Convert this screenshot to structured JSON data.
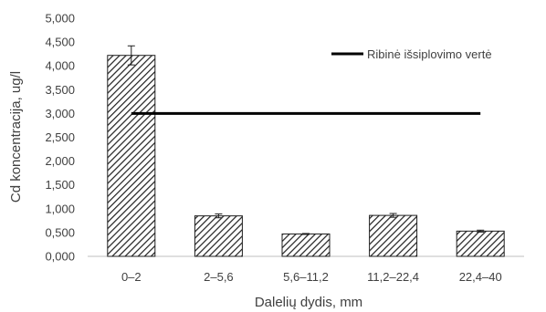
{
  "chart_data": {
    "type": "bar",
    "categories": [
      "0–2",
      "2–5,6",
      "5,6–11,2",
      "11,2–22,4",
      "22,4–40"
    ],
    "values": [
      4.22,
      0.85,
      0.47,
      0.86,
      0.53
    ],
    "error": [
      0.2,
      0.04,
      0.01,
      0.04,
      0.02
    ],
    "y_ticks": [
      "0,000",
      "0,500",
      "1,000",
      "1,500",
      "2,000",
      "2,500",
      "3,000",
      "3,500",
      "4,000",
      "4,500",
      "5,000"
    ],
    "ylim": [
      0,
      5
    ],
    "ylabel": "Cd koncentracija, ug/l",
    "xlabel": "Dalelių dydis, mm",
    "reference_line": {
      "name": "Ribinė išsiplovimo vertė",
      "value": 3.0
    },
    "legend_position": "top-right",
    "grid": false,
    "colors": {
      "bar_hatch": "#1f1f1f",
      "line": "#000000",
      "text": "#404040",
      "axis": "#bfbfbf"
    }
  }
}
